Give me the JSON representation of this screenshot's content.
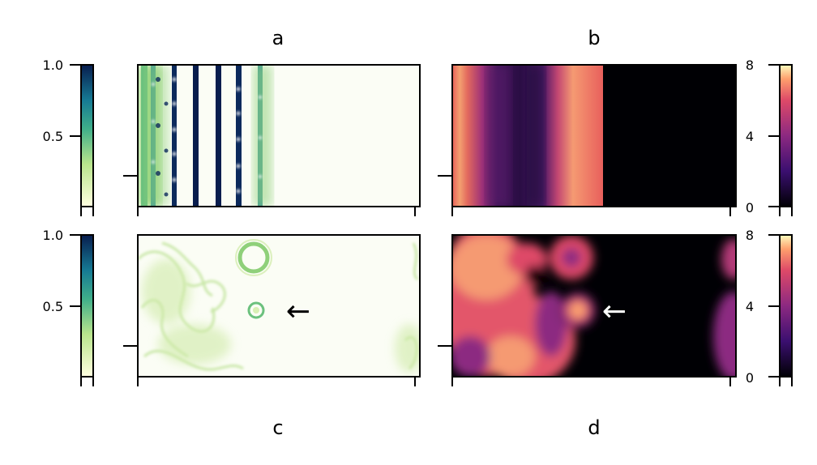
{
  "chart_data": [
    {
      "type": "heatmap",
      "panel_label": "a",
      "colormap": "green-blue",
      "colorbar": {
        "range": [
          0,
          1.0
        ],
        "tick_labels": [
          "1.0",
          "0.5"
        ]
      },
      "pattern": "vertical stripes",
      "arrow": ""
    },
    {
      "type": "heatmap",
      "panel_label": "b",
      "colormap": "magma",
      "colorbar": {
        "range": [
          0,
          8
        ],
        "tick_labels": [
          "8",
          "4",
          "0"
        ]
      },
      "pattern": "vertical bands",
      "arrow": ""
    },
    {
      "type": "heatmap",
      "panel_label": "c",
      "colormap": "green-blue",
      "colorbar": {
        "range": [
          0,
          1.0
        ],
        "tick_labels": [
          "1.0",
          "0.5"
        ]
      },
      "pattern": "rings and blobs",
      "arrow": "←"
    },
    {
      "type": "heatmap",
      "panel_label": "d",
      "colormap": "magma",
      "colorbar": {
        "range": [
          0,
          8
        ],
        "tick_labels": [
          "8",
          "4",
          "0"
        ]
      },
      "pattern": "blobs",
      "arrow": "←"
    }
  ],
  "colors": {
    "green_low": "#fbfdf5",
    "green_mid": "#8fd07a",
    "teal": "#1e8c8c",
    "navy": "#08205a",
    "magma_low": "#000004",
    "magma_mid": "#5b1e6e",
    "magma_high": "#fcc48a"
  }
}
